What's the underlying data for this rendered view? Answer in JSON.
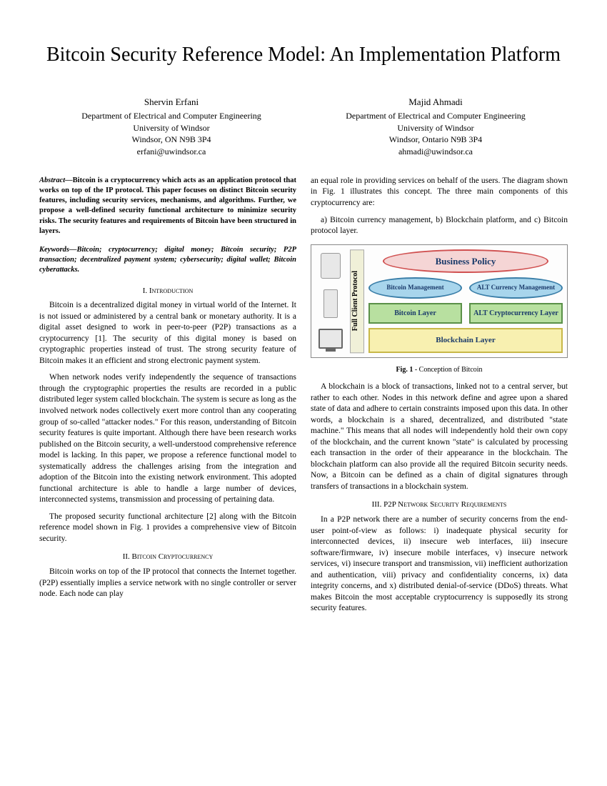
{
  "title": "Bitcoin Security Reference Model: An Implementation Platform",
  "authors": [
    {
      "name": "Shervin Erfani",
      "dept": "Department of Electrical and Computer Engineering",
      "univ": "University of Windsor",
      "addr": "Windsor, ON N9B 3P4",
      "email": "erfani@uwindsor.ca"
    },
    {
      "name": "Majid Ahmadi",
      "dept": "Department of Electrical and Computer Engineering",
      "univ": "University of Windsor",
      "addr": "Windsor, Ontario N9B 3P4",
      "email": "ahmadi@uwindsor.ca"
    }
  ],
  "abstract_label": "Abstract—",
  "abstract": "Bitcoin is a cryptocurrency which acts as an application protocol that works on top of the IP protocol. This paper focuses on distinct Bitcoin security features, including security services, mechanisms, and algorithms.  Further, we propose a well-defined security functional architecture to minimize security risks. The security features and requirements of Bitcoin have been structured in layers.",
  "keywords_label": "Keywords—",
  "keywords": "Bitcoin; cryptocurrency; digital money; Bitcoin security; P2P transaction; decentralized payment system; cybersecurity; digital wallet; Bitcoin cyberattacks.",
  "sections": {
    "s1_head": "I.   Introduction",
    "s1_p1": "Bitcoin is a decentralized digital money in virtual world of the Internet. It is not issued or administered by a central bank or monetary authority. It is a digital asset designed to work in peer-to-peer (P2P) transactions as a cryptocurrency [1]. The security of this digital money is based on cryptographic properties instead of trust. The strong security feature of Bitcoin makes it an efficient and strong electronic payment system.",
    "s1_p2": "When network nodes verify independently the sequence of transactions through the cryptographic properties the results are recorded in a public distributed leger system called blockchain. The system is secure as long as the involved network nodes collectively exert more control than any cooperating group of so-called \"attacker nodes.\"  For this reason, understanding of Bitcoin security features is quite important. Although there have been research works published on the Bitcoin security, a well-understood comprehensive reference model is lacking. In this paper, we propose a reference functional model to systematically address the challenges arising from the integration and adoption of the Bitcoin into the existing network environment. This adopted functional architecture is able to handle a large number of devices, interconnected systems, transmission and processing of pertaining data.",
    "s1_p3": "The proposed security functional architecture [2] along with the Bitcoin reference model shown in Fig. 1 provides a comprehensive view of Bitcoin security.",
    "s2_head": "II.   Bitcoin Cryptocurrency",
    "s2_p1": "Bitcoin works on top of the IP protocol that connects the Internet together. (P2P) essentially implies a service network with no single controller or server node. Each node can play",
    "col2_p1": "an equal role in providing services on behalf of the users. The diagram shown in Fig. 1 illustrates this concept. The three main components of this cryptocurrency are:",
    "components": "a)  Bitcoin  currency  management,  b)  Blockchain platform, and c)  Bitcoin protocol layer.",
    "col2_p2": "A blockchain is a block of transactions, linked not to a central server, but rather to each other. Nodes in this network define and agree upon a shared state of data and adhere to certain constraints imposed upon this data. In other words, a blockchain is a shared, decentralized, and distributed \"state machine.\" This means that all nodes will independently hold their own copy of the blockchain, and the current known \"state\" is calculated by processing each transaction in the order of their appearance in the blockchain. The blockchain platform can also provide all the required Bitcoin security needs. Now, a Bitcoin can be defined as a chain of digital signatures through transfers of transactions in a blockchain system.",
    "s3_head": "III.   P2P Network Security Requirements",
    "s3_p1": "In a P2P network there are a number of security concerns from the end-user point-of-view as follows: i) inadequate physical security for interconnected devices, ii) insecure web interfaces, iii) insecure software/firmware, iv) insecure mobile interfaces, v) insecure network services, vi) insecure transport and transmission, vii) inefficient authorization and authentication, viii) privacy and confidentiality concerns, ix) data integrity concerns, and x) distributed denial-of-service (DDoS) threats.  What makes Bitcoin the most acceptable cryptocurrency is supposedly its strong security features."
  },
  "figure": {
    "vlabel": "Full Client Protocol",
    "biz": "Business Policy",
    "mgmt1": "Bitcoin Management",
    "mgmt2": "ALT Currency Management",
    "layer1": "Bitcoin Layer",
    "layer2": "ALT Cryptocurrency Layer",
    "blockchain": "Blockchain Layer",
    "caption_bold": "Fig. 1",
    "caption_rest": " - Conception of Bitcoin",
    "colors": {
      "biz_bg": "#f5d5d5",
      "biz_border": "#d05050",
      "mgmt_bg": "#a8d5ec",
      "mgmt_border": "#3a7ea8",
      "layer_bg": "#b8e0a0",
      "layer_border": "#5a9048",
      "blockchain_bg": "#f8f0b0",
      "blockchain_border": "#c8b848",
      "text_color": "#1a3a6a"
    }
  }
}
